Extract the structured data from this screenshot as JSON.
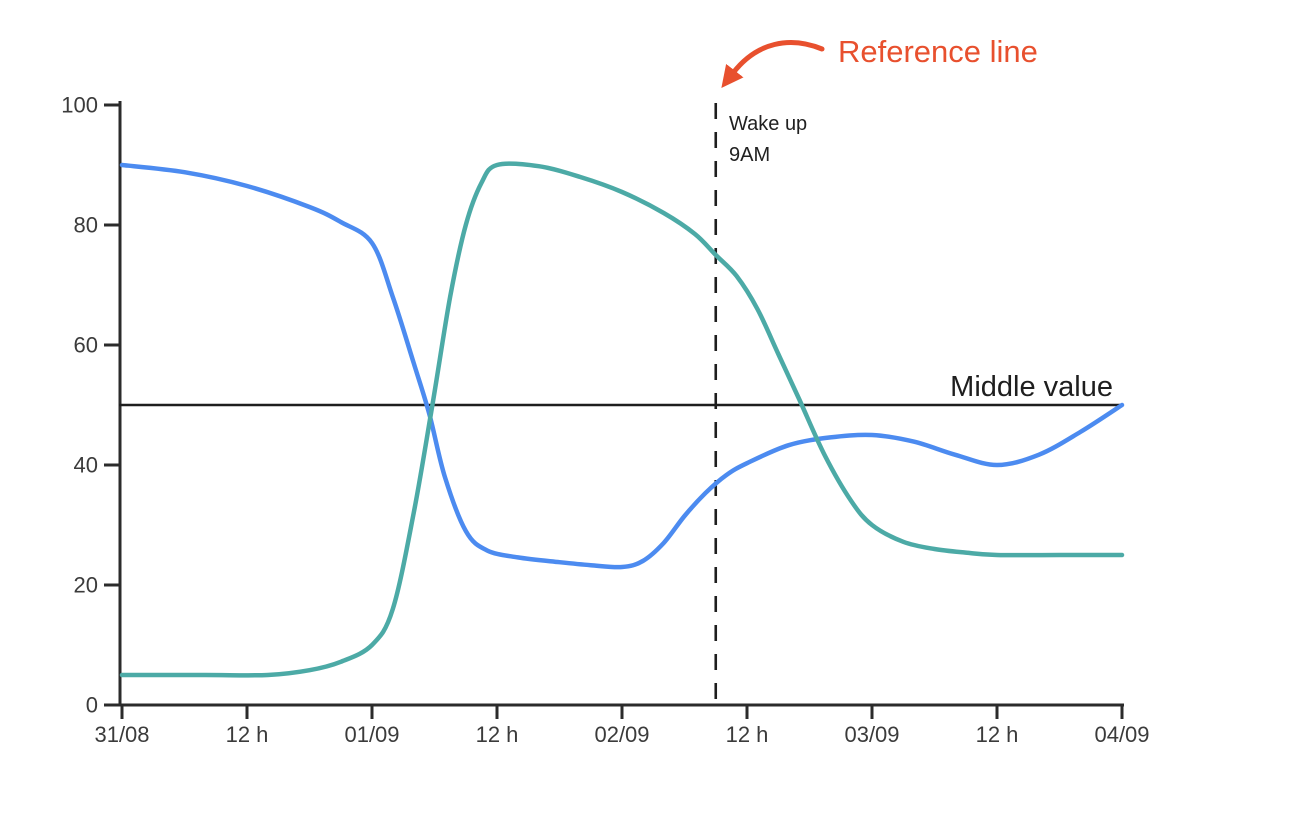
{
  "chart_data": {
    "type": "line",
    "title": "",
    "legend": "none",
    "grid": "off",
    "x_axis": {
      "tick_labels": [
        "31/08",
        "12 h",
        "01/09",
        "12 h",
        "02/09",
        "12 h",
        "03/09",
        "12 h",
        "04/09"
      ],
      "tick_hours": [
        0,
        12,
        24,
        36,
        48,
        60,
        72,
        84,
        96
      ],
      "range_hours": [
        0,
        96
      ]
    },
    "y_axis": {
      "tick_labels": [
        "0",
        "20",
        "40",
        "60",
        "80",
        "100"
      ],
      "tick_values": [
        0,
        20,
        40,
        60,
        80,
        100
      ],
      "range": [
        0,
        100
      ]
    },
    "series": [
      {
        "name": "blue-line",
        "color": "#4C8BF0",
        "points_hours_value": [
          [
            0,
            90
          ],
          [
            6,
            88.8
          ],
          [
            12,
            86.5
          ],
          [
            18,
            83
          ],
          [
            21,
            80.5
          ],
          [
            24,
            77
          ],
          [
            26,
            68
          ],
          [
            28,
            57
          ],
          [
            29.5,
            48.5
          ],
          [
            31,
            38
          ],
          [
            33,
            29
          ],
          [
            35,
            25.8
          ],
          [
            38,
            24.6
          ],
          [
            42,
            23.8
          ],
          [
            45,
            23.3
          ],
          [
            48,
            23
          ],
          [
            50,
            24
          ],
          [
            52,
            27
          ],
          [
            54,
            31.5
          ],
          [
            56,
            35.3
          ],
          [
            58,
            38.3
          ],
          [
            60,
            40.3
          ],
          [
            64,
            43.3
          ],
          [
            68,
            44.6
          ],
          [
            72,
            45
          ],
          [
            76,
            43.9
          ],
          [
            80,
            41.7
          ],
          [
            84,
            40
          ],
          [
            88,
            41.7
          ],
          [
            92,
            45.5
          ],
          [
            96,
            50
          ]
        ]
      },
      {
        "name": "teal-line",
        "color": "#4CAAA6",
        "points_hours_value": [
          [
            0,
            5
          ],
          [
            8,
            5
          ],
          [
            14,
            5
          ],
          [
            18,
            5.8
          ],
          [
            21,
            7.2
          ],
          [
            24,
            10
          ],
          [
            26,
            16
          ],
          [
            28,
            32
          ],
          [
            29.8,
            50
          ],
          [
            31.5,
            68
          ],
          [
            33,
            80
          ],
          [
            34.5,
            87
          ],
          [
            36,
            90
          ],
          [
            40,
            89.8
          ],
          [
            44,
            88
          ],
          [
            48,
            85.5
          ],
          [
            52,
            82
          ],
          [
            55,
            78.5
          ],
          [
            57,
            75
          ],
          [
            59,
            71.5
          ],
          [
            61,
            66
          ],
          [
            63,
            58.5
          ],
          [
            65,
            51
          ],
          [
            67.5,
            41.5
          ],
          [
            70,
            34
          ],
          [
            72,
            30
          ],
          [
            75,
            27.2
          ],
          [
            78,
            26
          ],
          [
            81,
            25.4
          ],
          [
            84,
            25
          ],
          [
            90,
            25
          ],
          [
            96,
            25
          ]
        ]
      }
    ],
    "middle_line": {
      "value": 50,
      "label": "Middle value",
      "color": "#1E1E1E"
    },
    "wake_line": {
      "hours": 57,
      "label_line1": "Wake up",
      "label_line2": "9AM",
      "style": "dashed",
      "color": "#1E1E1E"
    },
    "annotation": {
      "label": "Reference line",
      "color": "#E8502E"
    }
  },
  "colors": {
    "axis": "#2B2B2B",
    "tick_text": "#3B3B3B",
    "label_text": "#212121",
    "background": "#FFFFFF"
  }
}
